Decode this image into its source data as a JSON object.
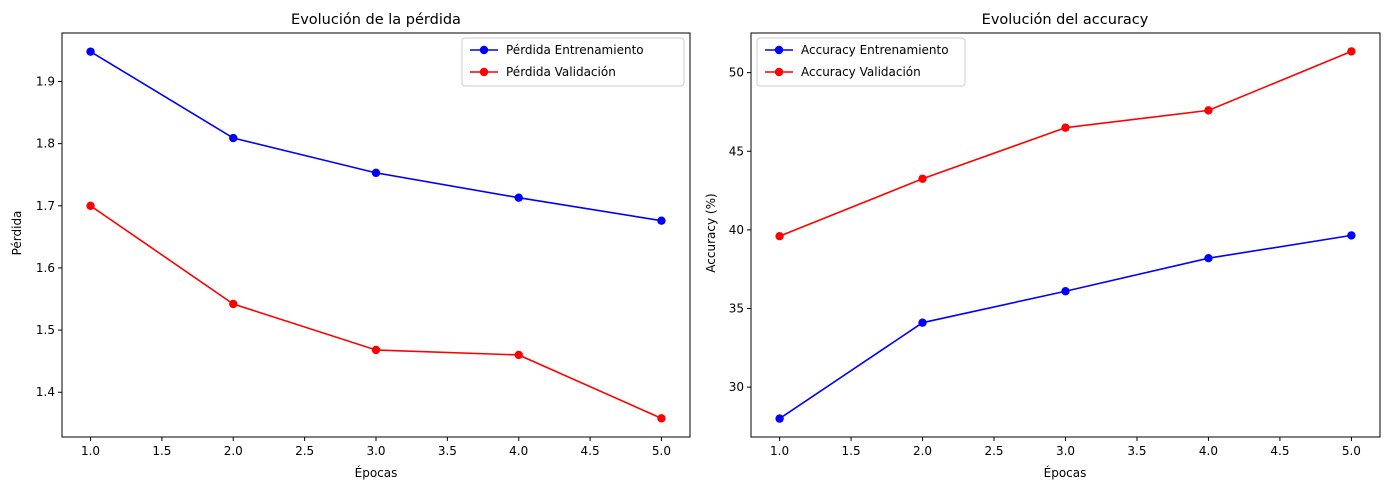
{
  "figure": {
    "background": "#ffffff"
  },
  "chart_data": [
    {
      "type": "line",
      "title": "Evolución de la pérdida",
      "xlabel": "Épocas",
      "ylabel": "Pérdida",
      "xlim": [
        0.8,
        5.2
      ],
      "ylim": [
        1.328,
        1.978
      ],
      "xticks": [
        1.0,
        1.5,
        2.0,
        2.5,
        3.0,
        3.5,
        4.0,
        4.5,
        5.0
      ],
      "xtick_labels": [
        "1.0",
        "1.5",
        "2.0",
        "2.5",
        "3.0",
        "3.5",
        "4.0",
        "4.5",
        "5.0"
      ],
      "yticks": [
        1.4,
        1.5,
        1.6,
        1.7,
        1.8,
        1.9
      ],
      "ytick_labels": [
        "1.4",
        "1.5",
        "1.6",
        "1.7",
        "1.8",
        "1.9"
      ],
      "grid": false,
      "legend_position": "top-right",
      "x": [
        1,
        2,
        3,
        4,
        5
      ],
      "series": [
        {
          "name": "Pérdida Entrenamiento",
          "color": "#0000ff",
          "marker": "circle",
          "values": [
            1.948,
            1.809,
            1.753,
            1.713,
            1.676
          ]
        },
        {
          "name": "Pérdida Validación",
          "color": "#ff0000",
          "marker": "circle",
          "values": [
            1.7,
            1.542,
            1.468,
            1.46,
            1.358
          ]
        }
      ]
    },
    {
      "type": "line",
      "title": "Evolución del accuracy",
      "xlabel": "Épocas",
      "ylabel": "Accuracy (%)",
      "xlim": [
        0.8,
        5.2
      ],
      "ylim": [
        26.83,
        52.52
      ],
      "xticks": [
        1.0,
        1.5,
        2.0,
        2.5,
        3.0,
        3.5,
        4.0,
        4.5,
        5.0
      ],
      "xtick_labels": [
        "1.0",
        "1.5",
        "2.0",
        "2.5",
        "3.0",
        "3.5",
        "4.0",
        "4.5",
        "5.0"
      ],
      "yticks": [
        30,
        35,
        40,
        45,
        50
      ],
      "ytick_labels": [
        "30",
        "35",
        "40",
        "45",
        "50"
      ],
      "grid": false,
      "legend_position": "top-left",
      "x": [
        1,
        2,
        3,
        4,
        5
      ],
      "series": [
        {
          "name": "Accuracy Entrenamiento",
          "color": "#0000ff",
          "marker": "circle",
          "values": [
            28.0,
            34.1,
            36.1,
            38.2,
            39.65
          ]
        },
        {
          "name": "Accuracy Validación",
          "color": "#ff0000",
          "marker": "circle",
          "values": [
            39.6,
            43.25,
            46.5,
            47.6,
            51.35
          ]
        }
      ]
    }
  ]
}
